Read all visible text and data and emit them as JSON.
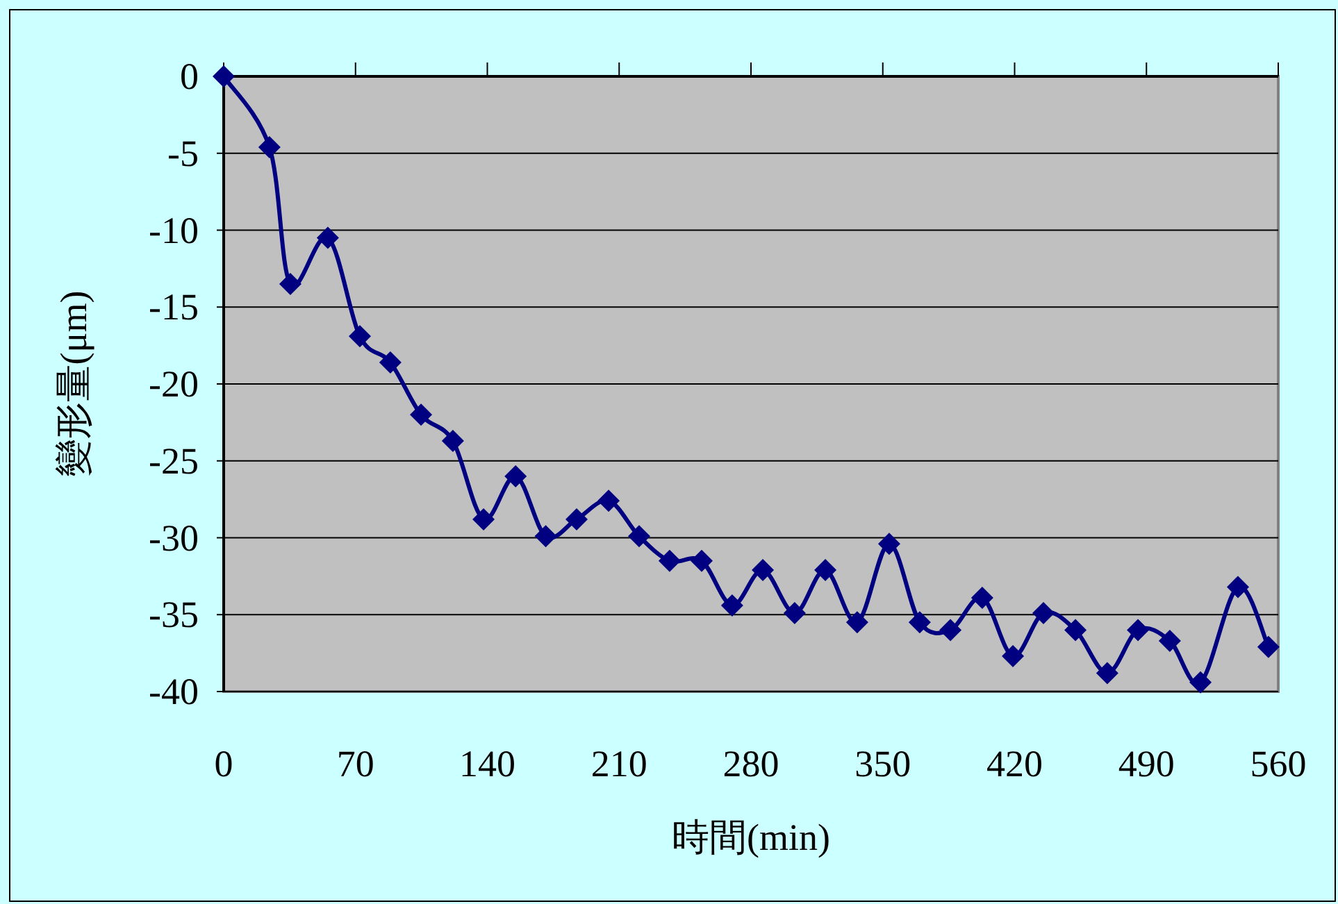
{
  "chart_data": {
    "type": "line",
    "xlabel": "時間(min)",
    "ylabel": "變形量(μm)",
    "x": [
      0,
      24.3,
      35.4,
      55.3,
      72.3,
      88.5,
      104.8,
      121.7,
      138,
      155,
      171,
      187.4,
      204.4,
      220.6,
      236.8,
      253.8,
      270,
      286.3,
      303.2,
      319.5,
      336.4,
      353.4,
      369.6,
      385.9,
      402.8,
      419.1,
      435.3,
      452.3,
      469.2,
      485.5,
      502.4,
      518.7,
      538.6,
      554.8
    ],
    "series": [
      {
        "color": "#000080",
        "values": [
          0,
          -4.6,
          -13.5,
          -10.5,
          -16.9,
          -18.6,
          -22.0,
          -23.7,
          -28.8,
          -26.0,
          -29.9,
          -28.8,
          -27.6,
          -29.9,
          -31.5,
          -31.5,
          -34.4,
          -32.1,
          -34.9,
          -32.1,
          -35.5,
          -30.4,
          -35.5,
          -36.0,
          -33.9,
          -37.7,
          -34.9,
          -36.0,
          -38.8,
          -36.0,
          -36.7,
          -39.4,
          -33.2,
          -37.1
        ]
      }
    ],
    "xlim": [
      0,
      560
    ],
    "xticks": [
      0,
      70,
      140,
      210,
      280,
      350,
      420,
      490,
      560
    ],
    "ylim": [
      -40,
      0
    ],
    "yticks": [
      0,
      -5,
      -10,
      -15,
      -20,
      -25,
      -30,
      -35,
      -40
    ],
    "grid": "y",
    "marker": "diamond",
    "line_style": "solid"
  }
}
